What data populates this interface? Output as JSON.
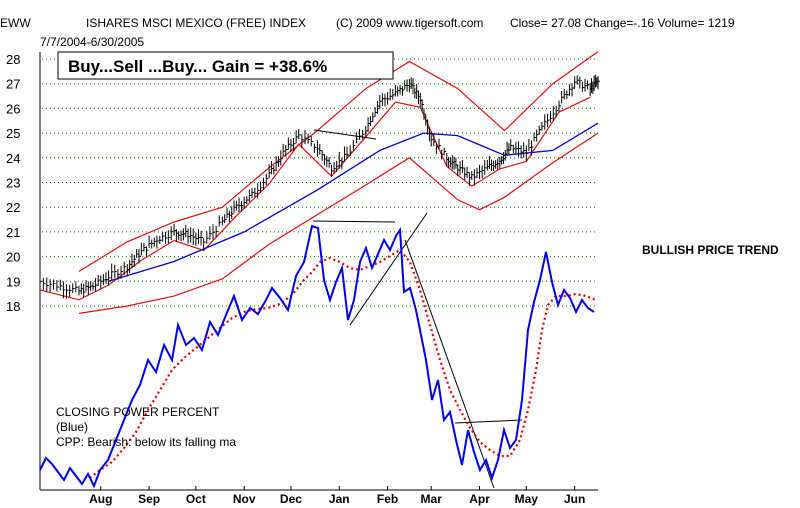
{
  "header": {
    "ticker": "EWW",
    "name": "ISHARES MSCI MEXICO (FREE) INDEX",
    "copyright": "(C) 2009 www.tigersoft.com",
    "stats": "Close=  27.08  Change=-.16 Volume=  1219",
    "date_range": "7/7/2004-6/30/2005"
  },
  "annotation_box": "Buy...Sell ...Buy...  Gain = +38.6%",
  "side_label": "BULLISH PRICE TREND",
  "indicator_notes": [
    "CLOSING POWER PERCENT",
    "(Blue)",
    "CPP: Bearish: below its falling ma"
  ],
  "colors": {
    "price_bars": "#000000",
    "ma": "#0000cc",
    "bands": "#e01010",
    "closing_power": "#0000ee",
    "closing_power_ma": "#e00000",
    "grid": "#008000"
  },
  "chart_data": {
    "type": "line",
    "ylim": [
      17.5,
      28.3
    ],
    "yticks": [
      "28",
      "27",
      "26",
      "25",
      "24",
      "23",
      "22",
      "21",
      "20",
      "19",
      "18"
    ],
    "xticks": [
      "Aug",
      "Sep",
      "Oct",
      "Nov",
      "Dec",
      "Jan",
      "Feb",
      "Mar",
      "Apr",
      "May",
      "Jun"
    ],
    "grid": true,
    "price_close_approx": [
      [
        "2004-07-07",
        19.0
      ],
      [
        "2004-07-20",
        18.8
      ],
      [
        "2004-08-01",
        18.6
      ],
      [
        "2004-08-10",
        18.8
      ],
      [
        "2004-08-20",
        19.2
      ],
      [
        "2004-09-01",
        19.6
      ],
      [
        "2004-09-10",
        20.2
      ],
      [
        "2004-09-20",
        20.7
      ],
      [
        "2004-10-01",
        21.0
      ],
      [
        "2004-10-10",
        20.9
      ],
      [
        "2004-10-20",
        20.6
      ],
      [
        "2004-11-01",
        21.4
      ],
      [
        "2004-11-10",
        22.0
      ],
      [
        "2004-11-20",
        22.5
      ],
      [
        "2004-12-01",
        23.3
      ],
      [
        "2004-12-10",
        24.2
      ],
      [
        "2004-12-20",
        24.9
      ],
      [
        "2005-01-01",
        24.4
      ],
      [
        "2005-01-10",
        23.6
      ],
      [
        "2005-01-20",
        24.1
      ],
      [
        "2005-02-01",
        25.2
      ],
      [
        "2005-02-10",
        26.3
      ],
      [
        "2005-02-20",
        26.6
      ],
      [
        "2005-03-01",
        27.0
      ],
      [
        "2005-03-08",
        26.4
      ],
      [
        "2005-03-15",
        24.8
      ],
      [
        "2005-03-25",
        24.0
      ],
      [
        "2005-04-01",
        23.6
      ],
      [
        "2005-04-10",
        23.2
      ],
      [
        "2005-04-20",
        23.6
      ],
      [
        "2005-04-28",
        23.9
      ],
      [
        "2005-05-05",
        24.4
      ],
      [
        "2005-05-15",
        24.2
      ],
      [
        "2005-05-25",
        25.2
      ],
      [
        "2005-06-05",
        26.2
      ],
      [
        "2005-06-15",
        27.1
      ],
      [
        "2005-06-25",
        26.8
      ],
      [
        "2005-06-30",
        27.08
      ]
    ],
    "ma_approx": [
      [
        "2004-08-20",
        19.0
      ],
      [
        "2004-10-01",
        19.8
      ],
      [
        "2004-11-15",
        21.0
      ],
      [
        "2005-01-01",
        22.7
      ],
      [
        "2005-02-10",
        24.3
      ],
      [
        "2005-03-10",
        25.0
      ],
      [
        "2005-04-01",
        24.9
      ],
      [
        "2005-05-01",
        24.1
      ],
      [
        "2005-06-01",
        24.3
      ],
      [
        "2005-06-30",
        25.4
      ]
    ],
    "upper_band_approx": [
      [
        "2004-08-01",
        19.4
      ],
      [
        "2004-09-01",
        20.6
      ],
      [
        "2004-10-01",
        21.4
      ],
      [
        "2004-11-01",
        22.0
      ],
      [
        "2004-12-01",
        23.6
      ],
      [
        "2005-01-01",
        25.1
      ],
      [
        "2005-02-01",
        26.8
      ],
      [
        "2005-03-01",
        27.9
      ],
      [
        "2005-04-01",
        26.8
      ],
      [
        "2005-05-01",
        25.1
      ],
      [
        "2005-06-01",
        27.0
      ],
      [
        "2005-06-30",
        28.3
      ]
    ],
    "lower_band_approx": [
      [
        "2004-08-01",
        17.7
      ],
      [
        "2004-09-01",
        18.0
      ],
      [
        "2004-10-01",
        18.4
      ],
      [
        "2004-11-01",
        19.1
      ],
      [
        "2004-12-01",
        20.5
      ],
      [
        "2005-01-01",
        21.7
      ],
      [
        "2005-02-01",
        22.9
      ],
      [
        "2005-03-01",
        24.0
      ],
      [
        "2005-04-01",
        22.3
      ],
      [
        "2005-04-15",
        21.9
      ],
      [
        "2005-05-01",
        22.4
      ],
      [
        "2005-06-01",
        23.8
      ],
      [
        "2005-06-30",
        25.0
      ]
    ]
  }
}
